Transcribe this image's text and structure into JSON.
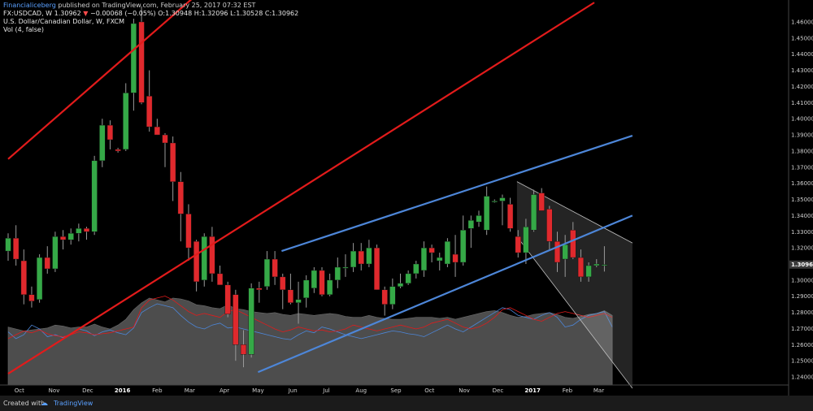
{
  "header": {
    "publisher": "Financialiceberg",
    "published_text": "published on TradingView.com, February 25, 2017 07:32 EST",
    "symbol": "FX:USDCAD, W",
    "last": "1.30962",
    "change_arrow": "▼",
    "change": "−0.00068 (−0.05%)",
    "open_label": "O:",
    "open": "1.30948",
    "high_label": "H:",
    "high": "1.32096",
    "low_label": "L:",
    "low": "1.30528",
    "close_label": "C:",
    "close": "1.30962",
    "instrument_title": "U.S. Dollar/Canadian Dollar, W, FXCM",
    "indicator": "Vol (4, false)"
  },
  "footer": {
    "created_with": "Created with",
    "brand": "TradingView"
  },
  "colors": {
    "bull": "#35a947",
    "bear": "#e0292d",
    "red_channel": "#e21b1b",
    "blue_channel": "#4d86d8",
    "volume_area": "#4d4d4d",
    "price_badge": "#3a3a3a",
    "bear_channel": "#bfbfbf"
  },
  "chart_data": {
    "type": "candlestick",
    "title": "U.S. Dollar/Canadian Dollar, W, FXCM",
    "price_axis": {
      "range": [
        1.235,
        1.4625
      ],
      "ticks": [
        "1.46000",
        "1.45000",
        "1.44000",
        "1.43000",
        "1.42000",
        "1.41000",
        "1.40000",
        "1.39000",
        "1.38000",
        "1.37000",
        "1.36000",
        "1.35000",
        "1.34000",
        "1.33000",
        "1.32000",
        "1.31000",
        "1.30000",
        "1.29000",
        "1.28000",
        "1.27000",
        "1.26000",
        "1.25000",
        "1.24000"
      ],
      "last_price_label": "1.30962"
    },
    "time_axis": [
      {
        "label": "Oct",
        "bold": false
      },
      {
        "label": "Nov",
        "bold": false
      },
      {
        "label": "Dec",
        "bold": false
      },
      {
        "label": "2016",
        "bold": true
      },
      {
        "label": "Feb",
        "bold": false
      },
      {
        "label": "Mar",
        "bold": false
      },
      {
        "label": "Apr",
        "bold": false
      },
      {
        "label": "May",
        "bold": false
      },
      {
        "label": "Jun",
        "bold": false
      },
      {
        "label": "Jul",
        "bold": false
      },
      {
        "label": "Aug",
        "bold": false
      },
      {
        "label": "Sep",
        "bold": false
      },
      {
        "label": "Oct",
        "bold": false
      },
      {
        "label": "Nov",
        "bold": false
      },
      {
        "label": "Dec",
        "bold": false
      },
      {
        "label": "2017",
        "bold": true
      },
      {
        "label": "Feb",
        "bold": false
      },
      {
        "label": "Mar",
        "bold": false
      }
    ],
    "candles": [
      [
        1.318,
        1.329,
        1.312,
        1.326
      ],
      [
        1.326,
        1.334,
        1.309,
        1.313
      ],
      [
        1.312,
        1.319,
        1.285,
        1.291
      ],
      [
        1.291,
        1.296,
        1.283,
        1.287
      ],
      [
        1.288,
        1.316,
        1.286,
        1.314
      ],
      [
        1.314,
        1.321,
        1.304,
        1.307
      ],
      [
        1.307,
        1.33,
        1.305,
        1.327
      ],
      [
        1.327,
        1.331,
        1.319,
        1.325
      ],
      [
        1.325,
        1.332,
        1.322,
        1.329
      ],
      [
        1.329,
        1.335,
        1.324,
        1.332
      ],
      [
        1.332,
        1.333,
        1.325,
        1.33
      ],
      [
        1.33,
        1.377,
        1.328,
        1.374
      ],
      [
        1.374,
        1.4,
        1.37,
        1.396
      ],
      [
        1.396,
        1.399,
        1.381,
        1.387
      ],
      [
        1.381,
        1.382,
        1.379,
        1.38
      ],
      [
        1.381,
        1.422,
        1.38,
        1.416
      ],
      [
        1.416,
        1.462,
        1.405,
        1.459
      ],
      [
        1.46,
        1.469,
        1.409,
        1.41
      ],
      [
        1.414,
        1.43,
        1.392,
        1.395
      ],
      [
        1.395,
        1.4,
        1.39,
        1.39
      ],
      [
        1.39,
        1.391,
        1.37,
        1.385
      ],
      [
        1.385,
        1.389,
        1.349,
        1.361
      ],
      [
        1.361,
        1.367,
        1.324,
        1.341
      ],
      [
        1.341,
        1.347,
        1.312,
        1.32
      ],
      [
        1.324,
        1.325,
        1.293,
        1.299
      ],
      [
        1.3,
        1.329,
        1.296,
        1.327
      ],
      [
        1.327,
        1.333,
        1.299,
        1.304
      ],
      [
        1.304,
        1.309,
        1.297,
        1.297
      ],
      [
        1.297,
        1.299,
        1.277,
        1.279
      ],
      [
        1.291,
        1.294,
        1.25,
        1.26
      ],
      [
        1.26,
        1.269,
        1.246,
        1.254
      ],
      [
        1.254,
        1.298,
        1.252,
        1.295
      ],
      [
        1.295,
        1.299,
        1.286,
        1.294
      ],
      [
        1.296,
        1.318,
        1.294,
        1.313
      ],
      [
        1.313,
        1.318,
        1.297,
        1.302
      ],
      [
        1.302,
        1.304,
        1.282,
        1.294
      ],
      [
        1.294,
        1.304,
        1.285,
        1.286
      ],
      [
        1.286,
        1.299,
        1.273,
        1.288
      ],
      [
        1.289,
        1.303,
        1.283,
        1.3
      ],
      [
        1.295,
        1.308,
        1.292,
        1.306
      ],
      [
        1.306,
        1.308,
        1.29,
        1.291
      ],
      [
        1.291,
        1.304,
        1.29,
        1.3
      ],
      [
        1.3,
        1.314,
        1.295,
        1.308
      ],
      [
        1.308,
        1.316,
        1.302,
        1.308
      ],
      [
        1.308,
        1.323,
        1.305,
        1.318
      ],
      [
        1.318,
        1.323,
        1.306,
        1.31
      ],
      [
        1.31,
        1.325,
        1.308,
        1.32
      ],
      [
        1.32,
        1.322,
        1.294,
        1.294
      ],
      [
        1.294,
        1.296,
        1.278,
        1.285
      ],
      [
        1.285,
        1.301,
        1.282,
        1.296
      ],
      [
        1.296,
        1.304,
        1.295,
        1.298
      ],
      [
        1.298,
        1.306,
        1.297,
        1.304
      ],
      [
        1.304,
        1.312,
        1.301,
        1.31
      ],
      [
        1.306,
        1.324,
        1.302,
        1.32
      ],
      [
        1.32,
        1.322,
        1.311,
        1.317
      ],
      [
        1.312,
        1.317,
        1.306,
        1.314
      ],
      [
        1.31,
        1.326,
        1.308,
        1.324
      ],
      [
        1.316,
        1.328,
        1.302,
        1.311
      ],
      [
        1.311,
        1.34,
        1.309,
        1.331
      ],
      [
        1.332,
        1.34,
        1.32,
        1.337
      ],
      [
        1.336,
        1.343,
        1.333,
        1.34
      ],
      [
        1.331,
        1.358,
        1.328,
        1.352
      ],
      [
        1.349,
        1.35,
        1.348,
        1.349
      ],
      [
        1.349,
        1.353,
        1.334,
        1.351
      ],
      [
        1.347,
        1.351,
        1.33,
        1.332
      ],
      [
        1.327,
        1.331,
        1.314,
        1.317
      ],
      [
        1.317,
        1.338,
        1.31,
        1.333
      ],
      [
        1.331,
        1.356,
        1.33,
        1.353
      ],
      [
        1.354,
        1.357,
        1.343,
        1.343
      ],
      [
        1.344,
        1.346,
        1.319,
        1.324
      ],
      [
        1.324,
        1.33,
        1.305,
        1.311
      ],
      [
        1.313,
        1.328,
        1.302,
        1.322
      ],
      [
        1.331,
        1.336,
        1.313,
        1.314
      ],
      [
        1.314,
        1.319,
        1.299,
        1.302
      ],
      [
        1.302,
        1.311,
        1.299,
        1.309
      ],
      [
        1.309,
        1.313,
        1.308,
        1.31
      ],
      [
        1.3095,
        1.321,
        1.3053,
        1.3096
      ]
    ],
    "red_channel": [
      {
        "from": [
          "2015-09-21",
          1.375
        ],
        "to": [
          "2016-05-01",
          1.51
        ]
      },
      {
        "from": [
          "2015-09-21",
          1.242
        ],
        "to": [
          "2017-02-25",
          1.472
        ]
      }
    ],
    "blue_channel": [
      {
        "from": [
          "2016-05-01",
          1.243
        ],
        "to": [
          "2017-03-31",
          1.34
        ]
      },
      {
        "from": [
          "2016-05-22",
          1.318
        ],
        "to": [
          "2017-03-31",
          1.3895
        ]
      }
    ],
    "bear_channel": {
      "upper": [
        [
          "2016-12-18",
          1.361
        ],
        [
          "2017-03-31",
          1.323
        ]
      ],
      "lower": [
        [
          "2016-12-18",
          1.327
        ],
        [
          "2017-03-31",
          1.233
        ]
      ]
    },
    "volume_area": [
      60,
      58,
      56,
      57,
      58,
      59,
      62,
      61,
      59,
      60,
      60,
      63,
      60,
      58,
      62,
      68,
      78,
      85,
      90,
      88,
      86,
      90,
      89,
      87,
      83,
      82,
      80,
      79,
      83,
      79,
      78,
      76,
      75,
      74,
      75,
      73,
      72,
      74,
      73,
      72,
      73,
      74,
      73,
      71,
      70,
      70,
      72,
      70,
      69,
      68,
      68,
      69,
      70,
      70,
      70,
      69,
      70,
      68,
      70,
      72,
      74,
      76,
      77,
      75,
      72,
      70,
      71,
      73,
      74,
      75,
      73,
      70,
      69,
      71,
      73,
      74,
      77,
      72
    ],
    "volume_line_blue": [
      55,
      48,
      52,
      62,
      58,
      50,
      52,
      49,
      53,
      58,
      56,
      51,
      55,
      57,
      54,
      52,
      59,
      75,
      80,
      84,
      82,
      80,
      72,
      65,
      60,
      58,
      62,
      64,
      59,
      60,
      58,
      56,
      54,
      52,
      50,
      48,
      47,
      52,
      56,
      54,
      60,
      58,
      55,
      52,
      50,
      48,
      50,
      52,
      54,
      56,
      55,
      53,
      52,
      50,
      54,
      58,
      62,
      58,
      55,
      60,
      65,
      70,
      75,
      80,
      78,
      72,
      70,
      68,
      72,
      75,
      70,
      60,
      62,
      68,
      72,
      74,
      76,
      60
    ],
    "volume_line_red": [
      48,
      52,
      56,
      54,
      57,
      53,
      51,
      50,
      52,
      55,
      54,
      52,
      53,
      54,
      56,
      58,
      60,
      80,
      88,
      90,
      92,
      88,
      82,
      76,
      72,
      74,
      72,
      70,
      76,
      78,
      74,
      70,
      66,
      62,
      58,
      55,
      57,
      60,
      58,
      56,
      57,
      55,
      56,
      58,
      62,
      60,
      58,
      56,
      58,
      60,
      62,
      60,
      58,
      60,
      64,
      66,
      68,
      64,
      60,
      58,
      60,
      64,
      70,
      78,
      80,
      76,
      72,
      68,
      66,
      70,
      74,
      76,
      74,
      72,
      70,
      72,
      74,
      70
    ],
    "volume_range": [
      0,
      100
    ]
  }
}
